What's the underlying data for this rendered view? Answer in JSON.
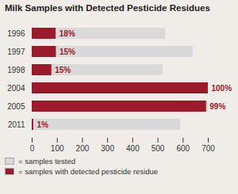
{
  "chart_data": {
    "type": "bar",
    "orientation": "horizontal",
    "stacked": false,
    "title": "Milk Samples with Detected Pesticide Residues",
    "categories": [
      "1996",
      "1997",
      "1998",
      "2004",
      "2005",
      "2011"
    ],
    "series": [
      {
        "name": "= samples tested",
        "color": "#d9d9d9",
        "values": [
          530,
          640,
          520,
          700,
          700,
          590
        ]
      },
      {
        "name": "= samples with detected pesticide residue",
        "color": "#9b1b2a",
        "values": [
          95,
          96,
          78,
          700,
          693,
          6
        ]
      }
    ],
    "annotations": [
      {
        "category": "1996",
        "text": "18%"
      },
      {
        "category": "1997",
        "text": "15%"
      },
      {
        "category": "1998",
        "text": "15%"
      },
      {
        "category": "2004",
        "text": "100%"
      },
      {
        "category": "2005",
        "text": "99%"
      },
      {
        "category": "2011",
        "text": "1%"
      }
    ],
    "xlim": [
      0,
      700
    ],
    "xticks": [
      0,
      100,
      200,
      300,
      400,
      500,
      600,
      700
    ],
    "grid": false,
    "legend": "bottom"
  }
}
